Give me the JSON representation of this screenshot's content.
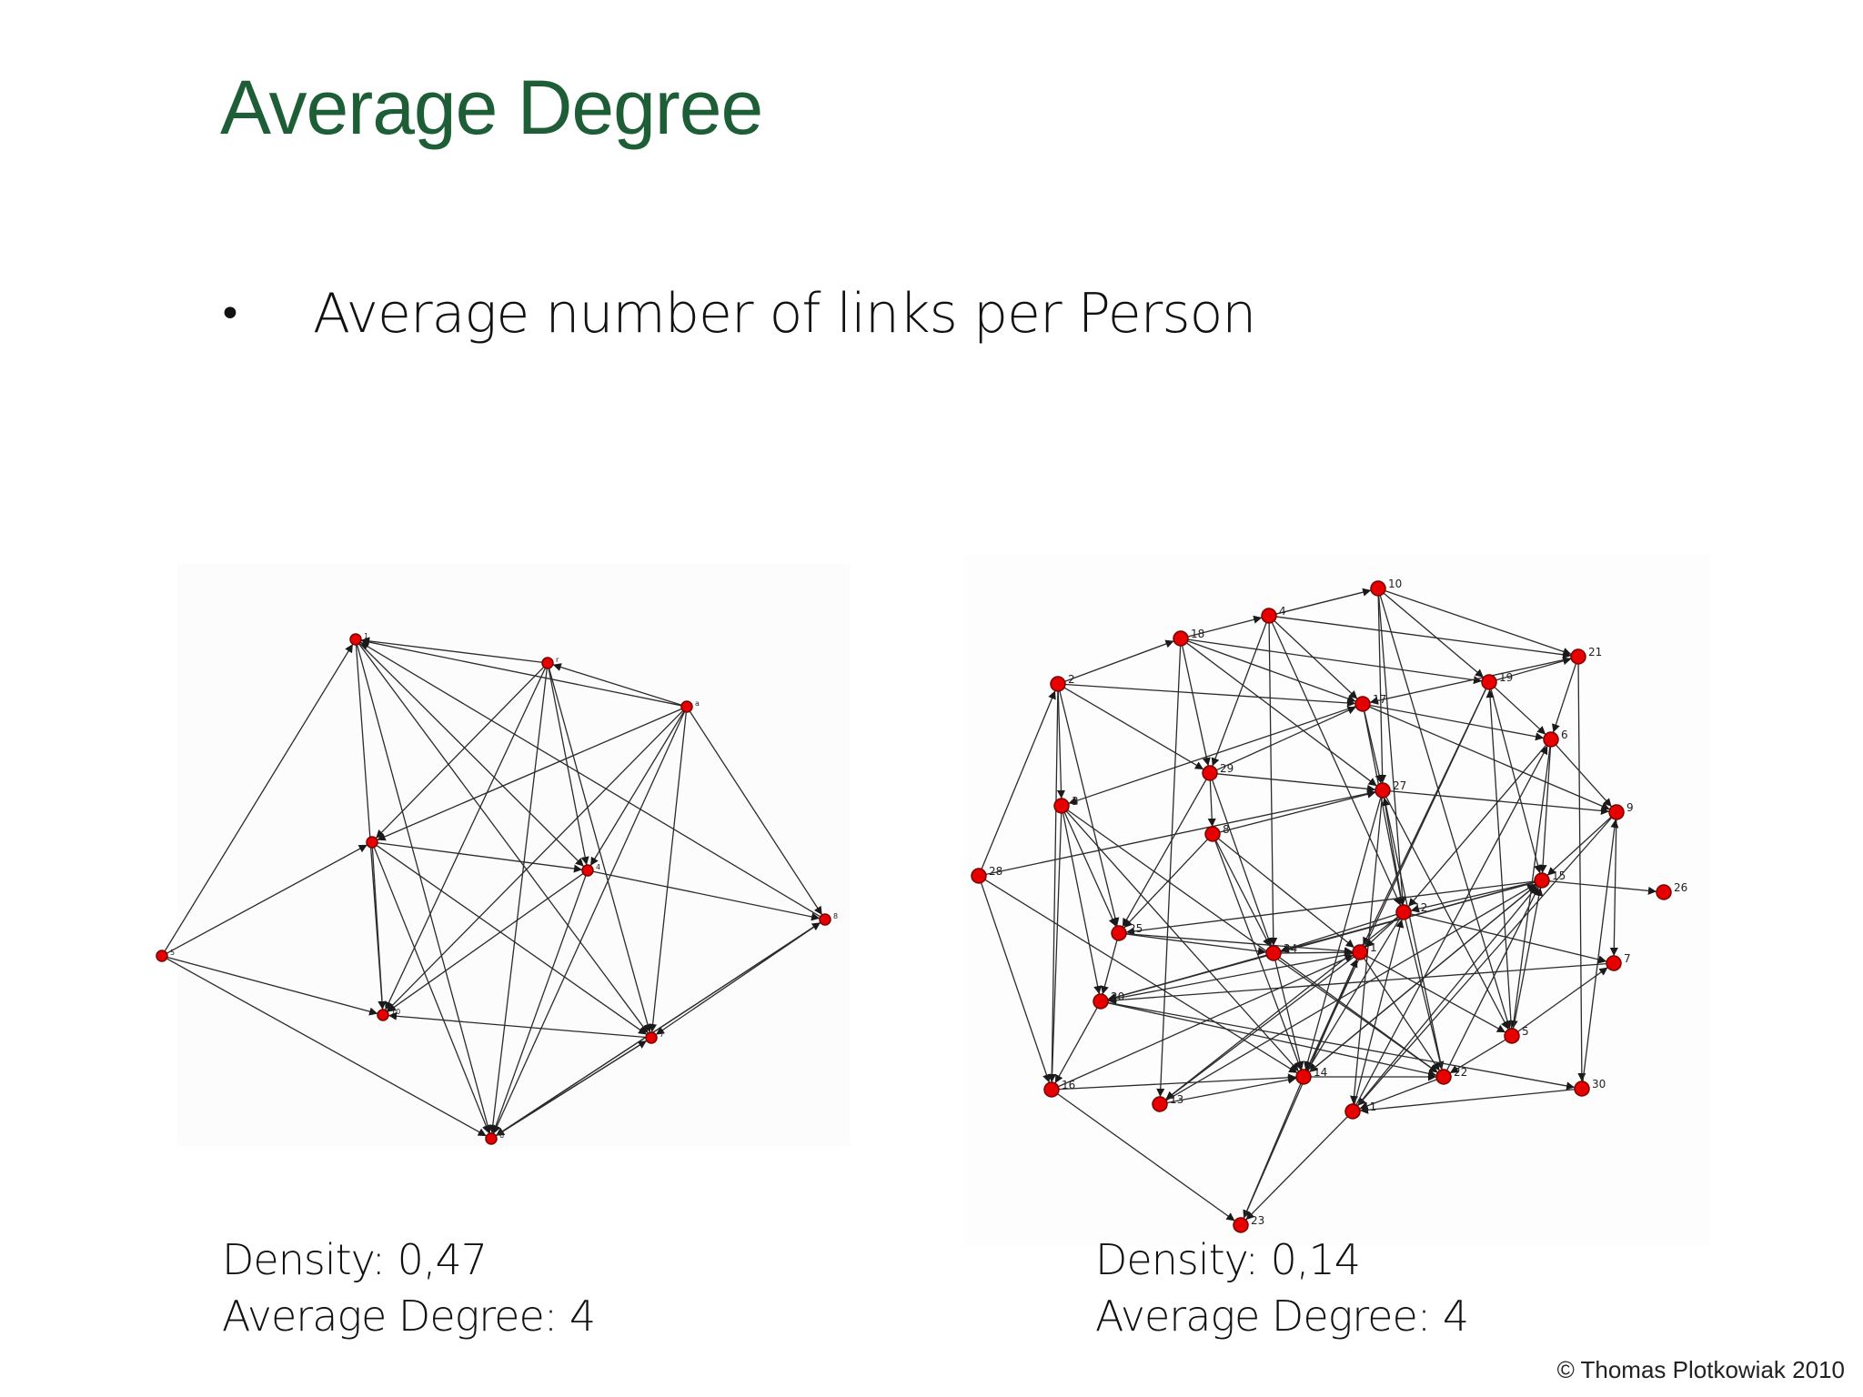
{
  "slide": {
    "title": "Average Degree",
    "bullet": {
      "glyph": "•",
      "text": "Average number of links per Person"
    },
    "left_network": {
      "nodes": [
        {
          "id": "1",
          "label": "1"
        },
        {
          "id": "2",
          "label": "r"
        },
        {
          "id": "3",
          "label": "a"
        },
        {
          "id": "4",
          "label": "5"
        },
        {
          "id": "5",
          "label": ""
        },
        {
          "id": "6",
          "label": "4"
        },
        {
          "id": "7",
          "label": "8"
        },
        {
          "id": "8",
          "label": "10"
        },
        {
          "id": "9",
          "label": "7"
        },
        {
          "id": "10",
          "label": "6"
        }
      ],
      "stats": {
        "density": "Density: 0,47",
        "average_degree": "Average Degree: 4"
      }
    },
    "right_network": {
      "nodes": [
        {
          "id": "10",
          "label": "10"
        },
        {
          "id": "4",
          "label": "4"
        },
        {
          "id": "18",
          "label": "18"
        },
        {
          "id": "21",
          "label": "21"
        },
        {
          "id": "2",
          "label": "2"
        },
        {
          "id": "19",
          "label": "19"
        },
        {
          "id": "17",
          "label": "17"
        },
        {
          "id": "6",
          "label": "6"
        },
        {
          "id": "29",
          "label": "29"
        },
        {
          "id": "27",
          "label": "27"
        },
        {
          "id": "3",
          "label": "3"
        },
        {
          "id": "9",
          "label": "9"
        },
        {
          "id": "8",
          "label": "8"
        },
        {
          "id": "28",
          "label": "28"
        },
        {
          "id": "15",
          "label": "15"
        },
        {
          "id": "26",
          "label": "26"
        },
        {
          "id": "12",
          "label": "12"
        },
        {
          "id": "25",
          "label": "25"
        },
        {
          "id": "24",
          "label": "24"
        },
        {
          "id": "1",
          "label": "1"
        },
        {
          "id": "7",
          "label": "7"
        },
        {
          "id": "20",
          "label": "20"
        },
        {
          "id": "5",
          "label": "5"
        },
        {
          "id": "16",
          "label": "16"
        },
        {
          "id": "14",
          "label": "14"
        },
        {
          "id": "22",
          "label": "22"
        },
        {
          "id": "30",
          "label": "30"
        },
        {
          "id": "13",
          "label": "13"
        },
        {
          "id": "11",
          "label": "11"
        },
        {
          "id": "23",
          "label": "23"
        }
      ],
      "stats": {
        "density": "Density: 0,14",
        "average_degree": "Average Degree: 4"
      }
    },
    "copyright": "© Thomas Plotkowiak 2010",
    "colors": {
      "title": "#1e5e37",
      "node_fill": "#e60000",
      "node_stroke": "#7a0000",
      "edge": "#2b2b2b"
    }
  }
}
